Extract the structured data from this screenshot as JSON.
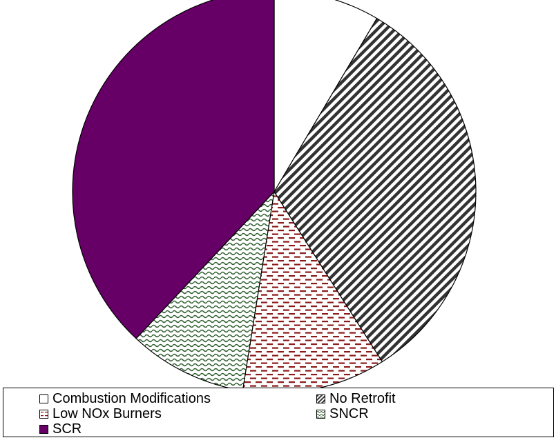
{
  "chart_data": {
    "type": "pie",
    "title": "",
    "start_angle_deg": 0,
    "direction": "clockwise",
    "slices": [
      {
        "label": "Combustion Modifications",
        "value": 8.5,
        "pattern": "none",
        "color": "#ffffff"
      },
      {
        "label": "No Retrofit",
        "value": 32.5,
        "pattern": "diagonal-stripes",
        "color": "#333333"
      },
      {
        "label": "Low NOx Burners",
        "value": 11.5,
        "pattern": "dashes",
        "color": "#8b1a1a"
      },
      {
        "label": "SNCR",
        "value": 9.5,
        "pattern": "waves",
        "color": "#2e5e2e"
      },
      {
        "label": "SCR",
        "value": 38.0,
        "pattern": "solid",
        "color": "#660066"
      }
    ],
    "legend": {
      "placement": "bottom",
      "entries": [
        "Combustion Modifications",
        "No Retrofit",
        "Low NOx Burners",
        "SNCR",
        "SCR"
      ]
    }
  }
}
